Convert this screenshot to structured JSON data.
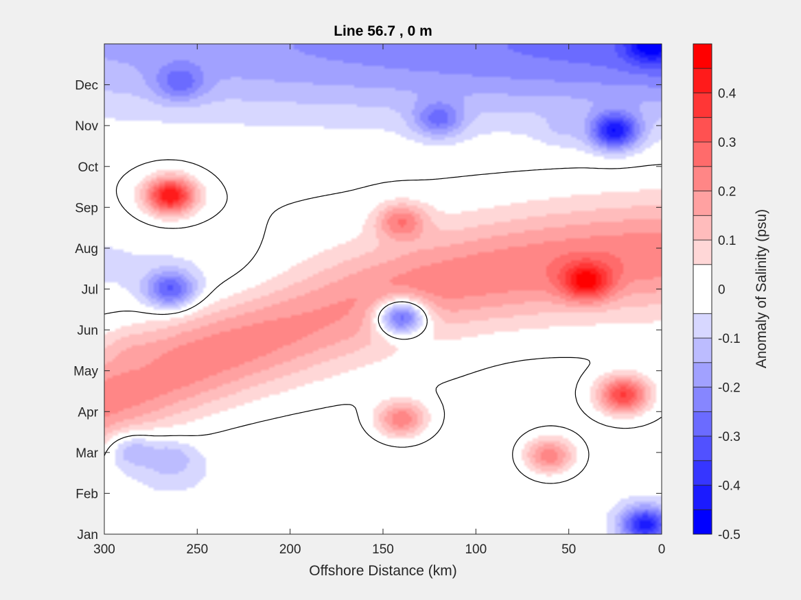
{
  "chart_data": {
    "type": "heatmap",
    "title": "Line 56.7 , 0 m",
    "xlabel": "Offshore Distance (km)",
    "ylabel": "",
    "x_ticks": [
      "300",
      "250",
      "200",
      "150",
      "100",
      "50",
      "0"
    ],
    "x_tick_values": [
      300,
      250,
      200,
      150,
      100,
      50,
      0
    ],
    "xlim": [
      300,
      0
    ],
    "y_ticks": [
      "Jan",
      "Feb",
      "Mar",
      "Apr",
      "May",
      "Jun",
      "Jul",
      "Aug",
      "Sep",
      "Oct",
      "Nov",
      "Dec"
    ],
    "y_tick_values": [
      1,
      2,
      3,
      4,
      5,
      6,
      7,
      8,
      9,
      10,
      11,
      12
    ],
    "ylim": [
      1,
      13
    ],
    "colorbar": {
      "label": "Anomaly of Salinity (psu)",
      "ticks": [
        "0.4",
        "0.3",
        "0.2",
        "0.1",
        "0",
        "-0.1",
        "-0.2",
        "-0.3",
        "-0.4",
        "-0.5"
      ],
      "tick_values": [
        0.4,
        0.3,
        0.2,
        0.1,
        0,
        -0.1,
        -0.2,
        -0.3,
        -0.4,
        -0.5
      ],
      "range": [
        -0.5,
        0.5
      ],
      "levels": [
        -0.5,
        -0.45,
        -0.4,
        -0.35,
        -0.3,
        -0.25,
        -0.2,
        -0.15,
        -0.1,
        -0.05,
        0.05,
        0.1,
        0.15,
        0.2,
        0.25,
        0.3,
        0.35,
        0.4,
        0.45,
        0.5
      ],
      "negative_color": "#0000ff",
      "positive_color": "#ff0000",
      "neutral_color": "#ffffff"
    },
    "zero_contour": true,
    "features": [
      {
        "kind": "max",
        "x_km": 265,
        "month": 9.3,
        "value": 0.5
      },
      {
        "kind": "max",
        "x_km": 140,
        "month": 8.65,
        "value": 0.27
      },
      {
        "kind": "max",
        "x_km": 40,
        "month": 7.2,
        "value": 0.47
      },
      {
        "kind": "max",
        "x_km": 20,
        "month": 4.4,
        "value": 0.4
      },
      {
        "kind": "max",
        "x_km": 140,
        "month": 3.8,
        "value": 0.27
      },
      {
        "kind": "max",
        "x_km": 60,
        "month": 2.9,
        "value": 0.27
      },
      {
        "kind": "max",
        "x_km": 285,
        "month": 5.4,
        "value": 0.12
      },
      {
        "kind": "min",
        "x_km": 265,
        "month": 7.0,
        "value": -0.33
      },
      {
        "kind": "min",
        "x_km": 140,
        "month": 6.3,
        "value": -0.35
      },
      {
        "kind": "min",
        "x_km": 25,
        "month": 10.9,
        "value": -0.48
      },
      {
        "kind": "max",
        "x_km": 52,
        "month": 11.0,
        "value": -0.1
      },
      {
        "kind": "min",
        "x_km": 5,
        "month": 13.0,
        "value": -0.45
      },
      {
        "kind": "min",
        "x_km": 260,
        "month": 12.1,
        "value": -0.27
      },
      {
        "kind": "min",
        "x_km": 120,
        "month": 11.2,
        "value": -0.28
      },
      {
        "kind": "min",
        "x_km": 8,
        "month": 1.2,
        "value": -0.47
      },
      {
        "kind": "min",
        "x_km": 265,
        "month": 2.8,
        "value": -0.15
      },
      {
        "kind": "min",
        "x_km": 285,
        "month": 3.0,
        "value": -0.15
      }
    ]
  }
}
